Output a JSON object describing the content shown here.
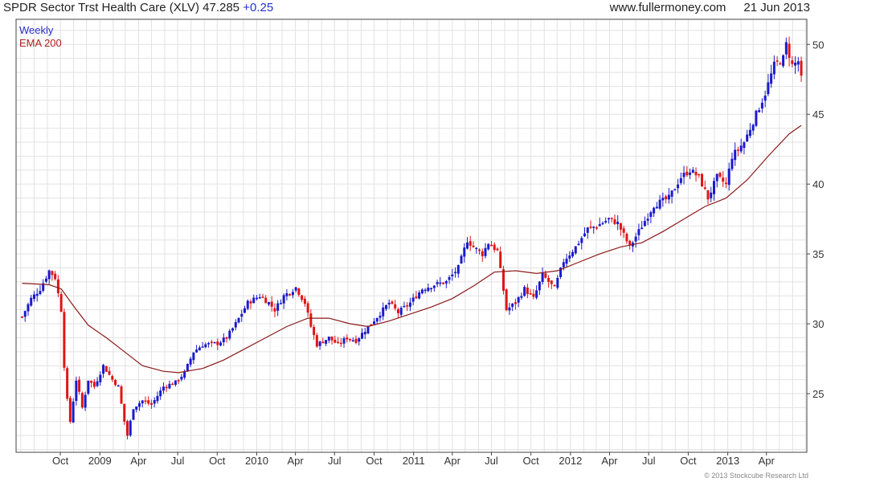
{
  "header": {
    "title": "SPDR Sector Trst Health Care (XLV)",
    "price": "47.285",
    "change": "+0.25",
    "site": "www.fullermoney.com",
    "date": "21 Jun 2013"
  },
  "footer": {
    "copyright": "© 2013 Stockcube Research Ltd"
  },
  "colors": {
    "up": "#1a1acc",
    "down": "#e01515",
    "ema": "#8b1a1a",
    "grid": "#e2e2e2",
    "frame": "#444444"
  },
  "chart_data": {
    "type": "candlestick",
    "title": "SPDR Sector Trst Health Care (XLV)",
    "legend": [
      "Weekly",
      "EMA 200"
    ],
    "legend_position": "top-left",
    "grid": true,
    "y_axis_side": "right",
    "ylim": [
      20.8,
      51.8
    ],
    "yticks": [
      25,
      30,
      35,
      40,
      45,
      50
    ],
    "xticks": [
      "Oct",
      "2009",
      "Apr",
      "Jul",
      "Oct",
      "2010",
      "Apr",
      "Jul",
      "Oct",
      "2011",
      "Apr",
      "Jul",
      "Oct",
      "2012",
      "Apr",
      "Jul",
      "Oct",
      "2013",
      "Apr"
    ],
    "price_series": [
      [
        "2008-07-04",
        30.5
      ],
      [
        "2008-07-25",
        31.8
      ],
      [
        "2008-08-15",
        32.5
      ],
      [
        "2008-09-05",
        33.8
      ],
      [
        "2008-09-19",
        33.3
      ],
      [
        "2008-10-03",
        31.0
      ],
      [
        "2008-10-10",
        27.0
      ],
      [
        "2008-10-17",
        24.5
      ],
      [
        "2008-10-24",
        23.0
      ],
      [
        "2008-11-07",
        26.0
      ],
      [
        "2008-11-21",
        24.0
      ],
      [
        "2008-12-05",
        26.0
      ],
      [
        "2008-12-19",
        25.5
      ],
      [
        "2009-01-09",
        27.0
      ],
      [
        "2009-01-30",
        26.0
      ],
      [
        "2009-02-13",
        25.5
      ],
      [
        "2009-02-27",
        23.0
      ],
      [
        "2009-03-06",
        22.0
      ],
      [
        "2009-03-20",
        24.0
      ],
      [
        "2009-04-10",
        24.5
      ],
      [
        "2009-05-01",
        24.2
      ],
      [
        "2009-05-29",
        25.5
      ],
      [
        "2009-06-26",
        25.8
      ],
      [
        "2009-07-17",
        26.5
      ],
      [
        "2009-08-07",
        28.0
      ],
      [
        "2009-08-28",
        28.5
      ],
      [
        "2009-10-02",
        28.6
      ],
      [
        "2009-10-23",
        29.0
      ],
      [
        "2009-11-13",
        30.0
      ],
      [
        "2009-12-11",
        31.5
      ],
      [
        "2010-01-08",
        32.0
      ],
      [
        "2010-01-29",
        31.5
      ],
      [
        "2010-02-12",
        31.0
      ],
      [
        "2010-03-05",
        32.0
      ],
      [
        "2010-04-02",
        32.6
      ],
      [
        "2010-04-23",
        31.5
      ],
      [
        "2010-05-07",
        29.8
      ],
      [
        "2010-05-21",
        28.5
      ],
      [
        "2010-06-18",
        29.0
      ],
      [
        "2010-07-09",
        28.5
      ],
      [
        "2010-07-30",
        29.0
      ],
      [
        "2010-08-20",
        28.8
      ],
      [
        "2010-09-17",
        29.8
      ],
      [
        "2010-10-08",
        30.5
      ],
      [
        "2010-11-05",
        31.5
      ],
      [
        "2010-11-26",
        30.8
      ],
      [
        "2010-12-24",
        31.5
      ],
      [
        "2011-01-21",
        32.5
      ],
      [
        "2011-02-18",
        32.8
      ],
      [
        "2011-03-18",
        33.0
      ],
      [
        "2011-04-15",
        34.0
      ],
      [
        "2011-05-06",
        36.0
      ],
      [
        "2011-05-20",
        35.5
      ],
      [
        "2011-06-10",
        35.0
      ],
      [
        "2011-06-24",
        35.8
      ],
      [
        "2011-07-15",
        35.2
      ],
      [
        "2011-08-05",
        31.0
      ],
      [
        "2011-08-26",
        31.5
      ],
      [
        "2011-09-16",
        32.5
      ],
      [
        "2011-10-07",
        31.8
      ],
      [
        "2011-10-28",
        33.5
      ],
      [
        "2011-11-25",
        32.5
      ],
      [
        "2011-12-16",
        34.5
      ],
      [
        "2012-01-13",
        35.5
      ],
      [
        "2012-02-10",
        36.8
      ],
      [
        "2012-03-02",
        37.0
      ],
      [
        "2012-03-30",
        37.5
      ],
      [
        "2012-04-20",
        37.2
      ],
      [
        "2012-05-18",
        35.5
      ],
      [
        "2012-06-15",
        37.0
      ],
      [
        "2012-07-13",
        38.5
      ],
      [
        "2012-08-17",
        39.0
      ],
      [
        "2012-09-14",
        40.5
      ],
      [
        "2012-10-05",
        41.0
      ],
      [
        "2012-10-26",
        40.5
      ],
      [
        "2012-11-16",
        39.0
      ],
      [
        "2012-12-07",
        40.5
      ],
      [
        "2012-12-28",
        40.0
      ],
      [
        "2013-01-11",
        42.0
      ],
      [
        "2013-02-08",
        43.0
      ],
      [
        "2013-03-08",
        45.0
      ],
      [
        "2013-03-29",
        46.5
      ],
      [
        "2013-04-19",
        48.5
      ],
      [
        "2013-05-10",
        49.0
      ],
      [
        "2013-05-17",
        50.0
      ],
      [
        "2013-05-31",
        48.5
      ],
      [
        "2013-06-14",
        48.8
      ],
      [
        "2013-06-21",
        47.5
      ]
    ],
    "ema_series": [
      [
        "2008-07-04",
        32.9
      ],
      [
        "2008-09-05",
        32.8
      ],
      [
        "2008-10-03",
        32.5
      ],
      [
        "2008-10-31",
        31.3
      ],
      [
        "2008-12-05",
        29.9
      ],
      [
        "2009-01-16",
        29.0
      ],
      [
        "2009-02-27",
        28.0
      ],
      [
        "2009-04-10",
        27.0
      ],
      [
        "2009-05-29",
        26.6
      ],
      [
        "2009-07-03",
        26.5
      ],
      [
        "2009-08-28",
        26.8
      ],
      [
        "2009-10-16",
        27.4
      ],
      [
        "2009-12-04",
        28.2
      ],
      [
        "2010-01-22",
        29.0
      ],
      [
        "2010-03-12",
        29.8
      ],
      [
        "2010-04-30",
        30.4
      ],
      [
        "2010-06-18",
        30.4
      ],
      [
        "2010-08-06",
        30.0
      ],
      [
        "2010-09-17",
        29.8
      ],
      [
        "2010-11-05",
        30.2
      ],
      [
        "2010-12-24",
        30.7
      ],
      [
        "2011-02-11",
        31.2
      ],
      [
        "2011-04-01",
        31.8
      ],
      [
        "2011-05-20",
        32.7
      ],
      [
        "2011-07-08",
        33.7
      ],
      [
        "2011-08-26",
        33.8
      ],
      [
        "2011-10-14",
        33.6
      ],
      [
        "2011-12-02",
        33.8
      ],
      [
        "2012-01-20",
        34.4
      ],
      [
        "2012-03-09",
        35.0
      ],
      [
        "2012-04-27",
        35.5
      ],
      [
        "2012-06-15",
        35.8
      ],
      [
        "2012-08-03",
        36.6
      ],
      [
        "2012-09-21",
        37.5
      ],
      [
        "2012-11-09",
        38.4
      ],
      [
        "2012-12-28",
        39.0
      ],
      [
        "2013-02-15",
        40.3
      ],
      [
        "2013-04-05",
        42.0
      ],
      [
        "2013-05-24",
        43.6
      ],
      [
        "2013-06-21",
        44.2
      ]
    ]
  }
}
